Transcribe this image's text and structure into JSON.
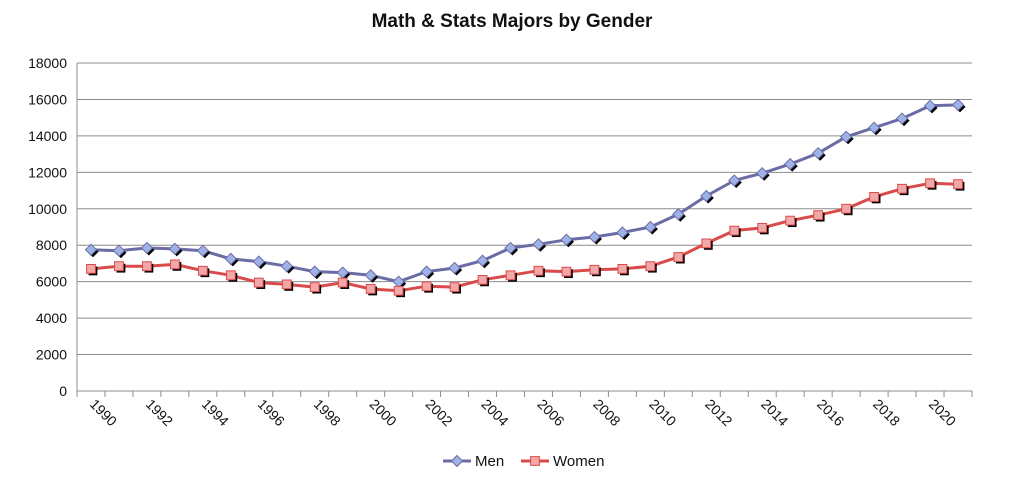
{
  "chart_data": {
    "type": "line",
    "title": "Math & Stats Majors by Gender",
    "xlabel": "",
    "ylabel": "",
    "ylim": [
      0,
      18000
    ],
    "yticks": [
      0,
      2000,
      4000,
      6000,
      8000,
      10000,
      12000,
      14000,
      16000,
      18000
    ],
    "x": [
      1990,
      1991,
      1992,
      1993,
      1994,
      1995,
      1996,
      1997,
      1998,
      1999,
      2000,
      2001,
      2002,
      2003,
      2004,
      2005,
      2006,
      2007,
      2008,
      2009,
      2010,
      2011,
      2012,
      2013,
      2014,
      2015,
      2016,
      2017,
      2018,
      2019,
      2020,
      2021
    ],
    "xtick_labels": [
      "1990",
      "1992",
      "1994",
      "1996",
      "1998",
      "2000",
      "2002",
      "2004",
      "2006",
      "2008",
      "2010",
      "2012",
      "2014",
      "2016",
      "2018",
      "2020"
    ],
    "grid": true,
    "legend_position": "bottom",
    "series": [
      {
        "name": "Men",
        "color": "#6b6ba6",
        "marker": "diamond",
        "marker_color": "#9db3e6",
        "values": [
          7750,
          7700,
          7850,
          7800,
          7700,
          7250,
          7100,
          6850,
          6550,
          6500,
          6350,
          6000,
          6550,
          6750,
          7150,
          7850,
          8050,
          8300,
          8450,
          8700,
          9000,
          9700,
          10700,
          11550,
          11950,
          12450,
          13050,
          13950,
          14450,
          14950,
          15650,
          15700
        ]
      },
      {
        "name": "Women",
        "color": "#d94a4a",
        "marker": "square",
        "marker_color": "#f2a8a8",
        "values": [
          6700,
          6850,
          6850,
          6950,
          6600,
          6350,
          5950,
          5850,
          5700,
          5950,
          5600,
          5500,
          5750,
          5700,
          6100,
          6350,
          6600,
          6550,
          6650,
          6700,
          6850,
          7350,
          8100,
          8800,
          8950,
          9350,
          9650,
          10000,
          10650,
          11100,
          11400,
          11350
        ]
      }
    ]
  }
}
